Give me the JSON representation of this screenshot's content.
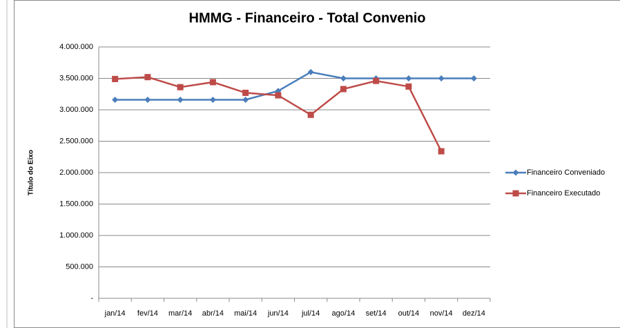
{
  "chart_data": {
    "type": "line",
    "title": "HMMG  -  Financeiro - Total  Convenio",
    "y_label": "Título do Eixo",
    "categories": [
      "jan/14",
      "fev/14",
      "mar/14",
      "abr/14",
      "mai/14",
      "jun/14",
      "jul/14",
      "ago/14",
      "set/14",
      "out/14",
      "nov/14",
      "dez/14"
    ],
    "series": [
      {
        "name": "Financeiro Conveniado",
        "color": "#4a7ebb",
        "marker": "diamond",
        "values": [
          3160000,
          3160000,
          3160000,
          3160000,
          3160000,
          3300000,
          3600000,
          3500000,
          3500000,
          3500000,
          3500000,
          3500000
        ]
      },
      {
        "name": "Financeiro Executado",
        "color": "#be4b48",
        "marker": "square",
        "values": [
          3490000,
          3520000,
          3360000,
          3440000,
          3270000,
          3230000,
          2920000,
          3330000,
          3460000,
          3370000,
          2340000,
          null
        ]
      }
    ],
    "ylim": [
      0,
      4000000
    ],
    "yticks": [
      {
        "value": 0,
        "label": "-"
      },
      {
        "value": 500000,
        "label": "500.000"
      },
      {
        "value": 1000000,
        "label": "1.000.000"
      },
      {
        "value": 1500000,
        "label": "1.500.000"
      },
      {
        "value": 2000000,
        "label": "2.000.000"
      },
      {
        "value": 2500000,
        "label": "2.500.000"
      },
      {
        "value": 3000000,
        "label": "3.000.000"
      },
      {
        "value": 3500000,
        "label": "3.500.000"
      },
      {
        "value": 4000000,
        "label": "4.000.000"
      }
    ],
    "grid": true,
    "legend": "right"
  }
}
